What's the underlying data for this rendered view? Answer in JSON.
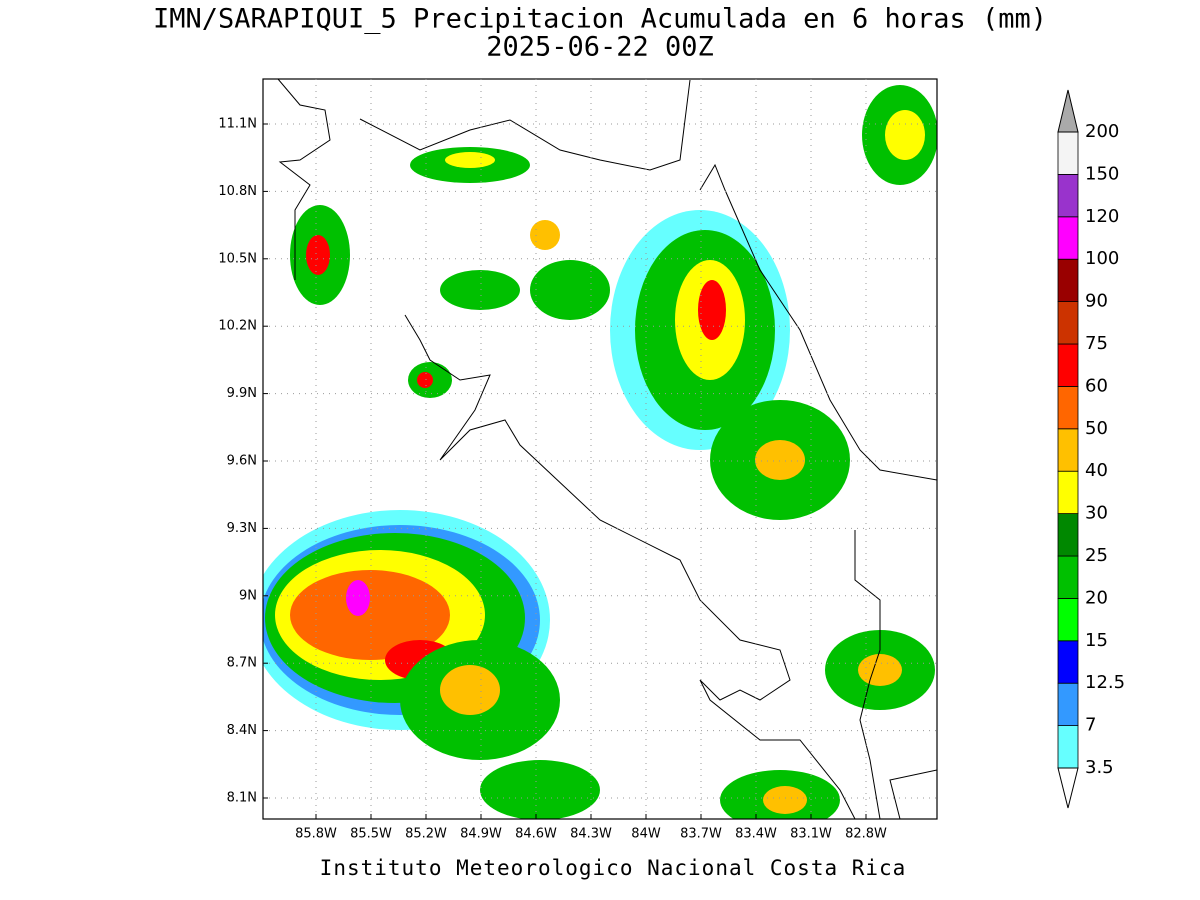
{
  "title": "IMN/SARAPIQUI_5 Precipitacion Acumulada en 6 horas (mm)",
  "subtitle": "2025-06-22 00Z",
  "map": {
    "lat_ticks": [
      {
        "value": 8.1,
        "label": "8.1N"
      },
      {
        "value": 8.4,
        "label": "8.4N"
      },
      {
        "value": 8.7,
        "label": "8.7N"
      },
      {
        "value": 9,
        "label": "9N"
      },
      {
        "value": 9.3,
        "label": "9.3N"
      },
      {
        "value": 9.6,
        "label": "9.6N"
      },
      {
        "value": 9.9,
        "label": "9.9N"
      },
      {
        "value": 10.2,
        "label": "10.2N"
      },
      {
        "value": 10.5,
        "label": "10.5N"
      },
      {
        "value": 10.8,
        "label": "10.8N"
      },
      {
        "value": 11.1,
        "label": "11.1N"
      }
    ],
    "lon_ticks": [
      {
        "value": -85.8,
        "label": "85.8W"
      },
      {
        "value": -85.5,
        "label": "85.5W"
      },
      {
        "value": -85.2,
        "label": "85.2W"
      },
      {
        "value": -84.9,
        "label": "84.9W"
      },
      {
        "value": -84.6,
        "label": "84.6W"
      },
      {
        "value": -84.3,
        "label": "84.3W"
      },
      {
        "value": -84,
        "label": "84W"
      },
      {
        "value": -83.7,
        "label": "83.7W"
      },
      {
        "value": -83.4,
        "label": "83.4W"
      },
      {
        "value": -83.1,
        "label": "83.1W"
      },
      {
        "value": -82.8,
        "label": "82.8W"
      }
    ]
  },
  "colorbar": {
    "levels": [
      3.5,
      7,
      12.5,
      15,
      20,
      25,
      30,
      40,
      50,
      60,
      75,
      90,
      100,
      120,
      150,
      200
    ],
    "colors": [
      "#66ffff",
      "#3399ff",
      "#0000ff",
      "#00ff00",
      "#00c000",
      "#008800",
      "#ffff00",
      "#ffc000",
      "#ff6600",
      "#ff0000",
      "#cc3300",
      "#990000",
      "#ff00ff",
      "#9933cc",
      "#f4f4f4"
    ],
    "under_color": "#ffffff",
    "over_color": "#aaaaaa"
  },
  "footer": "Instituto Meteorologico Nacional Costa Rica"
}
